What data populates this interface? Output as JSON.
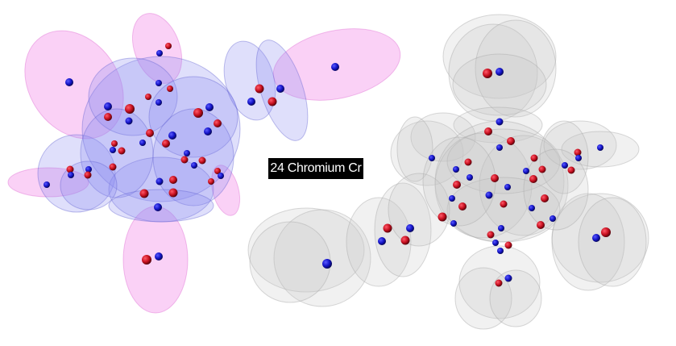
{
  "label": "24 Chromium Cr",
  "colors": {
    "background": "#ffffff",
    "electron_blue": "#1010b4",
    "electron_red": "#c0101e",
    "shell_blue": "#8c8cf0",
    "shell_pink": "#f07ce6",
    "shell_gray": "#c8c8c8",
    "label_bg": "#000000",
    "label_text": "#ffffff"
  }
}
